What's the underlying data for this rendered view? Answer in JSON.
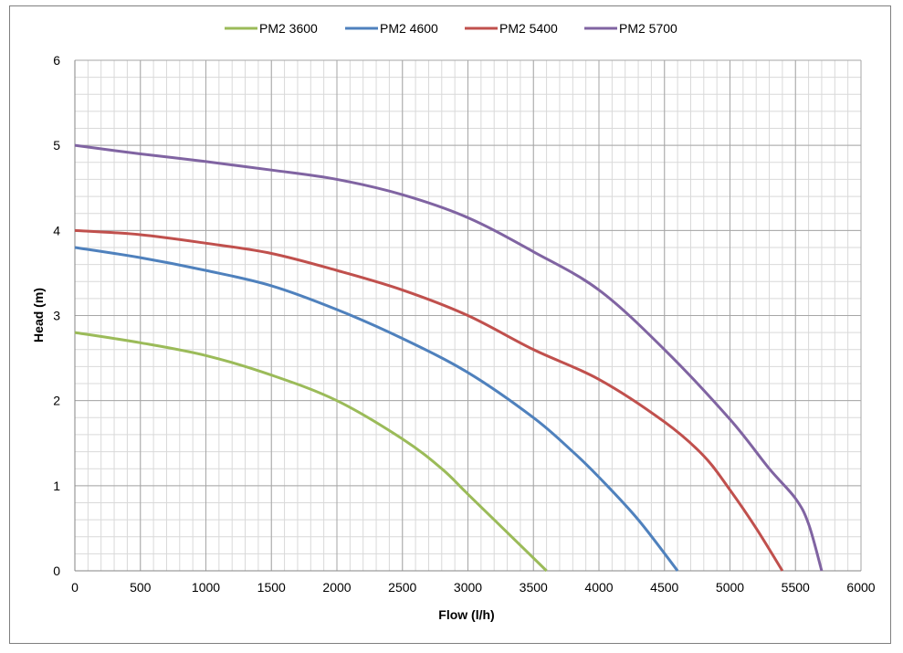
{
  "chart_data": {
    "type": "line",
    "title": "",
    "xlabel": "Flow (l/h)",
    "ylabel": "Head (m)",
    "xlim": [
      0,
      6000
    ],
    "ylim": [
      0,
      6
    ],
    "x_ticks": [
      0,
      500,
      1000,
      1500,
      2000,
      2500,
      3000,
      3500,
      4000,
      4500,
      5000,
      5500,
      6000
    ],
    "y_ticks": [
      0,
      1,
      2,
      3,
      4,
      5,
      6
    ],
    "x_minor_step": 100,
    "y_minor_step": 0.2,
    "grid": true,
    "legend_position": "top",
    "series": [
      {
        "name": "PM2 3600",
        "color": "#9bbb59",
        "points": [
          [
            0,
            2.8
          ],
          [
            500,
            2.68
          ],
          [
            1000,
            2.53
          ],
          [
            1500,
            2.3
          ],
          [
            2000,
            2.0
          ],
          [
            2500,
            1.55
          ],
          [
            2800,
            1.2
          ],
          [
            3000,
            0.9
          ],
          [
            3300,
            0.45
          ],
          [
            3600,
            0.0
          ]
        ]
      },
      {
        "name": "PM2 4600",
        "color": "#4f81bd",
        "points": [
          [
            0,
            3.8
          ],
          [
            500,
            3.68
          ],
          [
            1000,
            3.53
          ],
          [
            1500,
            3.35
          ],
          [
            2000,
            3.07
          ],
          [
            2500,
            2.73
          ],
          [
            3000,
            2.33
          ],
          [
            3500,
            1.8
          ],
          [
            3800,
            1.4
          ],
          [
            4000,
            1.1
          ],
          [
            4300,
            0.6
          ],
          [
            4600,
            0.0
          ]
        ]
      },
      {
        "name": "PM2 5400",
        "color": "#c0504d",
        "points": [
          [
            0,
            4.0
          ],
          [
            500,
            3.95
          ],
          [
            1000,
            3.85
          ],
          [
            1500,
            3.73
          ],
          [
            2000,
            3.53
          ],
          [
            2500,
            3.3
          ],
          [
            3000,
            3.0
          ],
          [
            3500,
            2.6
          ],
          [
            4000,
            2.25
          ],
          [
            4500,
            1.75
          ],
          [
            4800,
            1.35
          ],
          [
            5000,
            0.95
          ],
          [
            5200,
            0.5
          ],
          [
            5400,
            0.0
          ]
        ]
      },
      {
        "name": "PM2 5700",
        "color": "#8064a2",
        "points": [
          [
            0,
            5.0
          ],
          [
            500,
            4.9
          ],
          [
            1000,
            4.81
          ],
          [
            1500,
            4.71
          ],
          [
            2000,
            4.6
          ],
          [
            2500,
            4.42
          ],
          [
            3000,
            4.15
          ],
          [
            3500,
            3.75
          ],
          [
            4000,
            3.3
          ],
          [
            4500,
            2.6
          ],
          [
            5000,
            1.78
          ],
          [
            5300,
            1.2
          ],
          [
            5500,
            0.85
          ],
          [
            5600,
            0.55
          ],
          [
            5700,
            0.0
          ]
        ]
      }
    ]
  }
}
